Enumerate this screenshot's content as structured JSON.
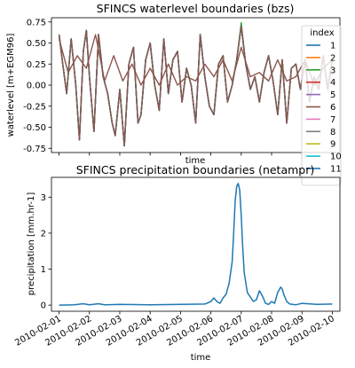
{
  "chart_data": [
    {
      "type": "line",
      "title": "SFINCS waterlevel boundaries (bzs)",
      "xlabel": "time",
      "ylabel": "waterlevel [m+EGM96]",
      "x_unit": "days from 2010-02-01",
      "xlim": [
        -0.25,
        9.25
      ],
      "ylim": [
        -0.8,
        0.8
      ],
      "yticks": [
        "-0.75",
        "-0.50",
        "-0.25",
        "0.00",
        "0.25",
        "0.50",
        "0.75"
      ],
      "grid": false,
      "legend": {
        "title": "index",
        "placement": "right",
        "entries": [
          "1",
          "2",
          "3",
          "4",
          "5",
          "6",
          "7",
          "8",
          "9",
          "10",
          "11"
        ],
        "colors": [
          "#1f77b4",
          "#ff7f0e",
          "#2ca02c",
          "#d62728",
          "#9467bd",
          "#8c564b",
          "#e377c2",
          "#7f7f7f",
          "#bcbd22",
          "#17becf",
          "#1f77b4"
        ]
      },
      "series": [
        {
          "name": "1",
          "color": "#1f77b4"
        },
        {
          "name": "2",
          "color": "#ff7f0e"
        },
        {
          "name": "3",
          "color": "#2ca02c"
        },
        {
          "name": "4",
          "color": "#d62728"
        },
        {
          "name": "5",
          "color": "#9467bd"
        },
        {
          "name": "6",
          "color": "#8c564b"
        },
        {
          "name": "7",
          "color": "#e377c2"
        },
        {
          "name": "8",
          "color": "#7f7f7f"
        },
        {
          "name": "9",
          "color": "#bcbd22"
        },
        {
          "name": "10",
          "color": "#17becf"
        },
        {
          "name": "11",
          "color": "#1f77b4"
        }
      ],
      "main_curve": {
        "x": [
          0,
          0.12,
          0.25,
          0.4,
          0.55,
          0.67,
          0.8,
          0.9,
          1.0,
          1.15,
          1.3,
          1.45,
          1.6,
          1.75,
          1.85,
          2.0,
          2.15,
          2.3,
          2.45,
          2.6,
          2.7,
          2.85,
          3.0,
          3.15,
          3.3,
          3.45,
          3.6,
          3.75,
          3.9,
          4.05,
          4.2,
          4.35,
          4.5,
          4.65,
          4.8,
          4.95,
          5.1,
          5.25,
          5.4,
          5.55,
          5.7,
          5.85,
          6.0,
          6.15,
          6.3,
          6.45,
          6.6,
          6.75,
          6.9,
          7.05,
          7.2,
          7.35,
          7.5,
          7.65,
          7.8,
          7.95,
          8.1,
          8.25,
          8.4,
          8.55,
          8.7,
          8.85,
          9.0
        ],
        "y": [
          0.6,
          0.25,
          -0.1,
          0.55,
          0.0,
          -0.65,
          0.4,
          0.65,
          0.1,
          -0.55,
          0.6,
          0.1,
          -0.1,
          -0.45,
          -0.6,
          -0.05,
          -0.72,
          0.25,
          0.45,
          -0.45,
          -0.35,
          0.3,
          0.5,
          0.0,
          -0.3,
          0.55,
          -0.1,
          0.3,
          0.4,
          -0.2,
          0.2,
          0.0,
          -0.45,
          0.6,
          0.1,
          -0.25,
          -0.35,
          0.25,
          0.35,
          -0.2,
          0.0,
          0.3,
          0.7,
          0.25,
          -0.05,
          0.1,
          -0.2,
          0.15,
          0.35,
          0.05,
          -0.35,
          0.3,
          -0.45,
          0.2,
          0.25,
          -0.05,
          0.3,
          -0.2,
          0.1,
          -0.05,
          0.35,
          -0.05,
          0.3
        ]
      },
      "smooth_curve": {
        "x": [
          0,
          0.3,
          0.6,
          0.9,
          1.2,
          1.5,
          1.8,
          2.1,
          2.4,
          2.7,
          3.0,
          3.3,
          3.6,
          3.9,
          4.2,
          4.5,
          4.8,
          5.1,
          5.4,
          5.7,
          6.0,
          6.3,
          6.6,
          6.9,
          7.2,
          7.5,
          7.8,
          8.1,
          8.4,
          8.7,
          9.0
        ],
        "y": [
          0.55,
          0.15,
          0.35,
          0.2,
          0.6,
          0.05,
          0.35,
          0.05,
          0.25,
          0.0,
          0.2,
          0.0,
          0.25,
          0.0,
          0.1,
          0.05,
          0.25,
          0.1,
          0.3,
          0.05,
          0.45,
          0.1,
          0.15,
          0.05,
          0.3,
          0.05,
          0.1,
          0.3,
          0.0,
          0.2,
          0.3
        ]
      }
    },
    {
      "type": "line",
      "title": "SFINCS precipitation boundaries (netampr)",
      "xlabel": "time",
      "ylabel": "precipitation [mm.hr-1]",
      "x_unit": "days from 2010-02-01",
      "xlim": [
        -0.25,
        9.25
      ],
      "ylim": [
        -0.17,
        3.55
      ],
      "yticks": [
        "0",
        "1",
        "2",
        "3"
      ],
      "xticks": [
        "2010-02-01",
        "2010-02-02",
        "2010-02-03",
        "2010-02-04",
        "2010-02-05",
        "2010-02-06",
        "2010-02-07",
        "2010-02-08",
        "2010-02-09",
        "2010-02-10"
      ],
      "grid": false,
      "series": [
        {
          "name": "",
          "color": "#1f77b4",
          "x": [
            0,
            0.5,
            0.8,
            1.0,
            1.3,
            1.5,
            2.0,
            3.0,
            4.0,
            4.8,
            5.0,
            5.1,
            5.2,
            5.3,
            5.4,
            5.5,
            5.6,
            5.7,
            5.75,
            5.8,
            5.85,
            5.9,
            5.95,
            6.0,
            6.05,
            6.1,
            6.2,
            6.4,
            6.5,
            6.6,
            6.7,
            6.8,
            6.9,
            7.0,
            7.1,
            7.2,
            7.3,
            7.35,
            7.4,
            7.5,
            7.6,
            7.8,
            8.0,
            8.5,
            9.0
          ],
          "y": [
            0.0,
            0.01,
            0.04,
            0.01,
            0.04,
            0.01,
            0.02,
            0.01,
            0.02,
            0.03,
            0.1,
            0.2,
            0.1,
            0.05,
            0.2,
            0.3,
            0.6,
            1.2,
            2.0,
            2.9,
            3.3,
            3.38,
            3.2,
            2.5,
            1.6,
            0.9,
            0.35,
            0.1,
            0.15,
            0.4,
            0.25,
            0.05,
            0.02,
            0.1,
            0.05,
            0.35,
            0.5,
            0.45,
            0.3,
            0.1,
            0.03,
            0.01,
            0.05,
            0.02,
            0.03
          ]
        }
      ]
    }
  ]
}
